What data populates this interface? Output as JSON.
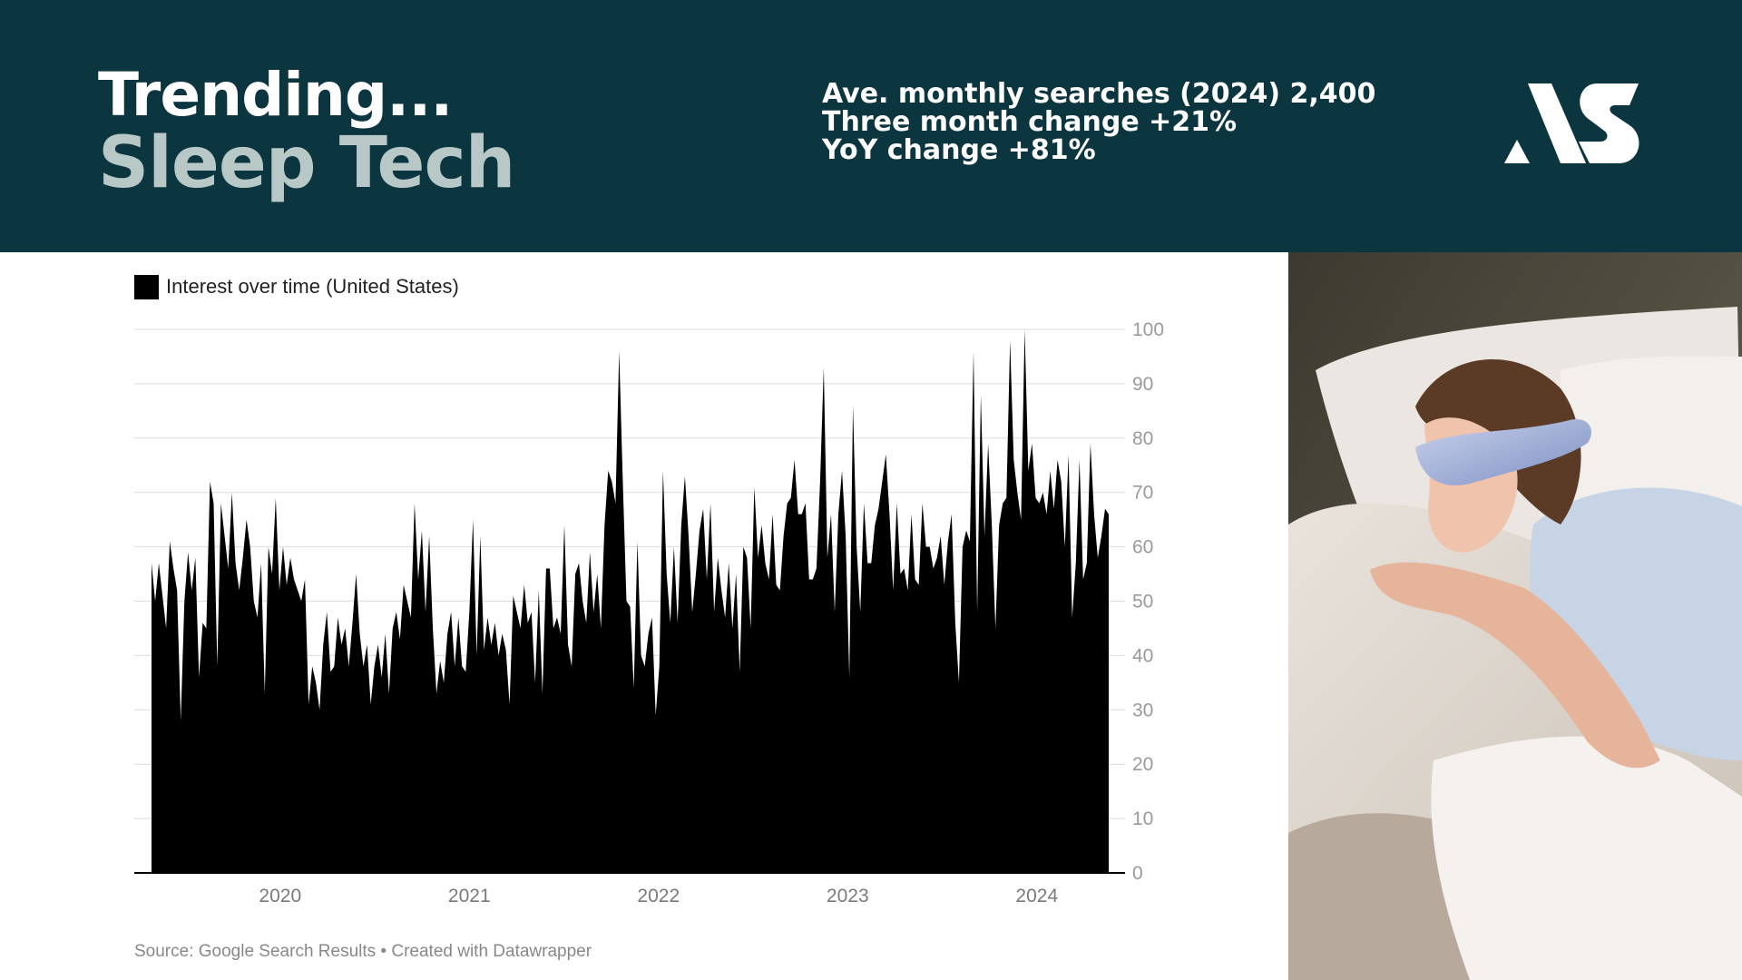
{
  "header": {
    "title_line1": "Trending...",
    "title_line2": "Sleep Tech",
    "stats": [
      "Ave. monthly searches (2024) 2,400",
      "Three month change +21%",
      "YoY change +81%"
    ],
    "bg_color": "#0b3640",
    "subtitle_color": "#b7c8c6"
  },
  "chart_data": {
    "type": "area",
    "legend": "Interest over time (United States)",
    "color": "#000000",
    "grid": true,
    "legend_position": "top-left",
    "y_axis_position": "right",
    "ylim": [
      0,
      100
    ],
    "yticks": [
      "0",
      "10",
      "20",
      "30",
      "40",
      "50",
      "60",
      "70",
      "80",
      "90",
      "100"
    ],
    "xlim": [
      2019.32,
      2024.38
    ],
    "xticks": [
      {
        "value": 2020,
        "label": "2020"
      },
      {
        "value": 2021,
        "label": "2021"
      },
      {
        "value": 2022,
        "label": "2022"
      },
      {
        "value": 2023,
        "label": "2023"
      },
      {
        "value": 2024,
        "label": "2024"
      }
    ],
    "x_start": "2019-05",
    "x_end": "2024-05",
    "values": [
      57,
      50,
      57,
      51,
      45,
      61,
      56,
      52,
      28,
      50,
      59,
      52,
      58,
      36,
      46,
      45,
      72,
      68,
      38,
      68,
      62,
      56,
      70,
      57,
      52,
      58,
      65,
      60,
      50,
      47,
      57,
      33,
      60,
      55,
      69,
      52,
      60,
      53,
      58,
      54,
      52,
      50,
      54,
      31,
      38,
      35,
      30,
      42,
      48,
      37,
      38,
      47,
      42,
      45,
      38,
      46,
      55,
      44,
      38,
      42,
      31,
      38,
      42,
      36,
      44,
      33,
      45,
      48,
      43,
      53,
      50,
      47,
      68,
      54,
      63,
      48,
      62,
      45,
      33,
      39,
      35,
      44,
      48,
      38,
      47,
      38,
      37,
      48,
      65,
      40,
      62,
      41,
      47,
      42,
      46,
      40,
      44,
      41,
      31,
      51,
      48,
      45,
      53,
      46,
      48,
      35,
      52,
      33,
      56,
      56,
      45,
      47,
      44,
      64,
      42,
      38,
      55,
      57,
      50,
      46,
      59,
      48,
      55,
      45,
      64,
      74,
      72,
      68,
      96,
      72,
      50,
      49,
      34,
      61,
      40,
      38,
      44,
      47,
      29,
      38,
      74,
      55,
      46,
      60,
      46,
      64,
      73,
      62,
      48,
      55,
      63,
      67,
      54,
      68,
      48,
      58,
      52,
      47,
      57,
      45,
      55,
      37,
      60,
      58,
      45,
      71,
      58,
      64,
      57,
      54,
      66,
      53,
      52,
      62,
      68,
      69,
      76,
      66,
      66,
      68,
      54,
      54,
      56,
      72,
      93,
      58,
      66,
      48,
      66,
      74,
      62,
      36,
      86,
      60,
      48,
      68,
      57,
      57,
      64,
      67,
      72,
      77,
      66,
      52,
      68,
      55,
      56,
      52,
      66,
      54,
      53,
      68,
      60,
      60,
      56,
      58,
      62,
      53,
      61,
      66,
      46,
      35,
      60,
      63,
      61,
      96,
      48,
      88,
      62,
      79,
      64,
      45,
      64,
      68,
      69,
      98,
      76,
      70,
      65,
      100,
      74,
      79,
      69,
      68,
      70,
      66,
      74,
      67,
      76,
      72,
      60,
      77,
      47,
      57,
      76,
      54,
      57,
      79,
      66,
      58,
      62,
      67,
      66
    ]
  },
  "source_text": "Source: Google Search Results",
  "source_sep": " • ",
  "credit_text": "Created with Datawrapper"
}
